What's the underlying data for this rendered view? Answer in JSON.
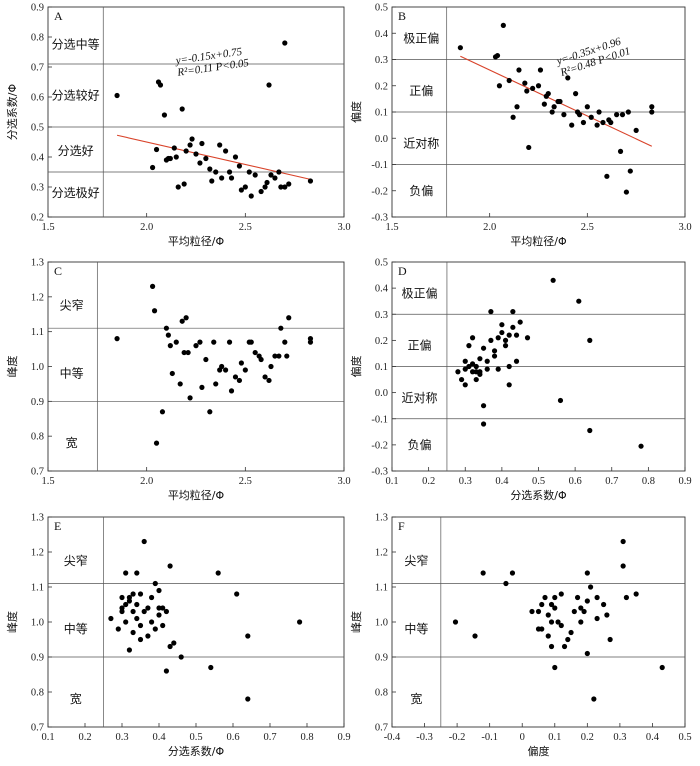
{
  "chart_data": [
    {
      "id": "A",
      "type": "scatter",
      "panel_label": "A",
      "xlabel": "平均粒径/Φ",
      "ylabel": "分选系数/Φ",
      "xlim": [
        1.5,
        3.0
      ],
      "ylim": [
        0.2,
        0.9
      ],
      "xticks": [
        1.5,
        2.0,
        2.5,
        3.0
      ],
      "yticks": [
        0.2,
        0.3,
        0.4,
        0.5,
        0.6,
        0.7,
        0.8,
        0.9
      ],
      "xtick_labels": [
        "1.5",
        "2.0",
        "2.5",
        "3.0"
      ],
      "ytick_labels": [
        "0.2",
        "0.3",
        "0.4",
        "0.5",
        "0.6",
        "0.7",
        "0.8",
        "0.9"
      ],
      "vlines": [
        1.78
      ],
      "hlines": [
        0.71,
        0.5,
        0.35
      ],
      "regions": [
        {
          "text": "分选中等",
          "x": 1.64,
          "y": 0.775
        },
        {
          "text": "分选较好",
          "x": 1.64,
          "y": 0.605
        },
        {
          "text": "分选好",
          "x": 1.64,
          "y": 0.42
        },
        {
          "text": "分选极好",
          "x": 1.64,
          "y": 0.28
        }
      ],
      "trend": {
        "x": [
          1.85,
          2.83
        ],
        "y": [
          0.4725,
          0.3255
        ]
      },
      "equation": {
        "lines": [
          "y=-0.15x+0.75",
          "R²=0.11   P<0.05"
        ],
        "x": 2.15,
        "y": 0.71,
        "rotate": -8
      },
      "x": [
        1.85,
        2.03,
        2.05,
        2.07,
        2.09,
        2.12,
        2.15,
        2.18,
        2.2,
        2.22,
        2.25,
        2.28,
        2.3,
        2.32,
        2.35,
        2.38,
        2.4,
        2.42,
        2.45,
        2.48,
        2.5,
        2.52,
        2.55,
        2.58,
        2.6,
        2.63,
        2.65,
        2.68,
        2.7,
        2.72,
        2.83,
        2.06,
        2.1,
        2.14,
        2.19,
        2.23,
        2.27,
        2.33,
        2.37,
        2.43,
        2.47,
        2.53,
        2.62,
        2.67,
        2.61,
        2.7,
        2.11,
        2.16
      ],
      "y": [
        0.605,
        0.365,
        0.425,
        0.64,
        0.54,
        0.395,
        0.4,
        0.56,
        0.42,
        0.44,
        0.41,
        0.445,
        0.395,
        0.36,
        0.35,
        0.33,
        0.42,
        0.35,
        0.4,
        0.29,
        0.3,
        0.35,
        0.34,
        0.285,
        0.3,
        0.34,
        0.33,
        0.3,
        0.78,
        0.31,
        0.32,
        0.65,
        0.39,
        0.43,
        0.31,
        0.46,
        0.38,
        0.32,
        0.44,
        0.33,
        0.37,
        0.27,
        0.64,
        0.35,
        0.315,
        0.3,
        0.395,
        0.3
      ]
    },
    {
      "id": "B",
      "type": "scatter",
      "panel_label": "B",
      "xlabel": "平均粒径/Φ",
      "ylabel": "偏度",
      "xlim": [
        1.5,
        3.0
      ],
      "ylim": [
        -0.3,
        0.5
      ],
      "xticks": [
        1.5,
        2.0,
        2.5,
        3.0
      ],
      "yticks": [
        -0.3,
        -0.2,
        -0.1,
        0.0,
        0.1,
        0.2,
        0.3,
        0.4,
        0.5
      ],
      "xtick_labels": [
        "1.5",
        "2.0",
        "2.5",
        "3.0"
      ],
      "ytick_labels": [
        "-0.3",
        "-0.2",
        "-0.1",
        "0.0",
        "0.1",
        "0.2",
        "0.3",
        "0.4",
        "0.5"
      ],
      "vlines": [
        1.78
      ],
      "hlines": [
        0.3,
        0.1,
        -0.1
      ],
      "regions": [
        {
          "text": "极正偏",
          "x": 1.65,
          "y": 0.38
        },
        {
          "text": "正偏",
          "x": 1.65,
          "y": 0.18
        },
        {
          "text": "近对称",
          "x": 1.65,
          "y": -0.02
        },
        {
          "text": "负偏",
          "x": 1.65,
          "y": -0.2
        }
      ],
      "trend": {
        "x": [
          1.85,
          2.83
        ],
        "y": [
          0.3125,
          -0.0305
        ]
      },
      "equation": {
        "lines": [
          "y=-0.35x+0.96",
          "R²=0.48   P<0.01"
        ],
        "x": 2.35,
        "y": 0.28,
        "rotate": -18
      },
      "x": [
        1.85,
        2.03,
        2.05,
        2.07,
        2.1,
        2.12,
        2.15,
        2.18,
        2.2,
        2.22,
        2.25,
        2.28,
        2.3,
        2.32,
        2.35,
        2.38,
        2.4,
        2.42,
        2.45,
        2.48,
        2.5,
        2.52,
        2.55,
        2.58,
        2.6,
        2.62,
        2.65,
        2.67,
        2.7,
        2.72,
        2.75,
        2.83,
        2.04,
        2.14,
        2.26,
        2.36,
        2.44,
        2.56,
        2.68,
        2.71,
        2.19,
        2.29,
        2.46,
        2.61,
        2.83,
        2.33
      ],
      "y": [
        0.345,
        0.31,
        0.2,
        0.43,
        0.22,
        0.08,
        0.26,
        0.21,
        -0.035,
        0.19,
        0.2,
        0.13,
        0.17,
        0.1,
        0.14,
        0.09,
        0.23,
        0.05,
        0.1,
        0.06,
        0.12,
        0.08,
        0.05,
        0.06,
        -0.145,
        0.06,
        0.09,
        -0.05,
        -0.205,
        -0.125,
        0.03,
        0.12,
        0.315,
        0.12,
        0.26,
        0.14,
        0.17,
        0.1,
        0.09,
        0.1,
        0.18,
        0.16,
        0.09,
        0.07,
        0.1,
        0.12
      ]
    },
    {
      "id": "C",
      "type": "scatter",
      "panel_label": "C",
      "xlabel": "平均粒径/Φ",
      "ylabel": "峰度",
      "xlim": [
        1.5,
        3.0
      ],
      "ylim": [
        0.7,
        1.3
      ],
      "xticks": [
        1.5,
        2.0,
        2.5,
        3.0
      ],
      "yticks": [
        0.7,
        0.8,
        0.9,
        1.0,
        1.1,
        1.2,
        1.3
      ],
      "xtick_labels": [
        "1.5",
        "2.0",
        "2.5",
        "3.0"
      ],
      "ytick_labels": [
        "0.7",
        "0.8",
        "0.9",
        "1.0",
        "1.1",
        "1.2",
        "1.3"
      ],
      "vlines": [
        1.75
      ],
      "hlines": [
        1.11,
        0.9
      ],
      "regions": [
        {
          "text": "尖窄",
          "x": 1.62,
          "y": 1.175
        },
        {
          "text": "中等",
          "x": 1.62,
          "y": 0.98
        },
        {
          "text": "宽",
          "x": 1.62,
          "y": 0.78
        }
      ],
      "x": [
        1.85,
        2.03,
        2.04,
        2.05,
        2.08,
        2.1,
        2.12,
        2.15,
        2.18,
        2.2,
        2.22,
        2.25,
        2.28,
        2.3,
        2.32,
        2.35,
        2.38,
        2.4,
        2.42,
        2.45,
        2.48,
        2.5,
        2.52,
        2.55,
        2.58,
        2.6,
        2.63,
        2.65,
        2.68,
        2.7,
        2.72,
        2.83,
        2.11,
        2.13,
        2.17,
        2.21,
        2.27,
        2.34,
        2.37,
        2.43,
        2.47,
        2.53,
        2.57,
        2.62,
        2.67,
        2.71,
        2.83,
        2.19
      ],
      "y": [
        1.08,
        1.23,
        1.16,
        0.78,
        0.87,
        1.11,
        1.06,
        1.07,
        1.13,
        1.14,
        0.91,
        1.06,
        0.94,
        1.02,
        0.87,
        0.95,
        1.0,
        0.99,
        1.07,
        0.97,
        1.01,
        0.99,
        1.07,
        1.04,
        1.02,
        0.97,
        1.0,
        1.03,
        1.11,
        1.07,
        1.14,
        1.07,
        1.09,
        0.98,
        0.95,
        1.04,
        1.07,
        1.07,
        0.99,
        0.93,
        0.96,
        1.07,
        1.03,
        0.96,
        1.03,
        1.03,
        1.08,
        1.04
      ]
    },
    {
      "id": "D",
      "type": "scatter",
      "panel_label": "D",
      "xlabel": "分选系数/Φ",
      "ylabel": "偏度",
      "xlim": [
        0.1,
        0.9
      ],
      "ylim": [
        -0.3,
        0.5
      ],
      "xticks": [
        0.1,
        0.2,
        0.3,
        0.4,
        0.5,
        0.6,
        0.7,
        0.8,
        0.9
      ],
      "yticks": [
        -0.3,
        -0.2,
        -0.1,
        0.0,
        0.1,
        0.2,
        0.3,
        0.4,
        0.5
      ],
      "xtick_labels": [
        "0.1",
        "0.2",
        "0.3",
        "0.4",
        "0.5",
        "0.6",
        "0.7",
        "0.8",
        "0.9"
      ],
      "ytick_labels": [
        "-0.3",
        "-0.2",
        "-0.1",
        "0.0",
        "0.1",
        "0.2",
        "0.3",
        "0.4",
        "0.5"
      ],
      "vlines": [
        0.25
      ],
      "hlines": [
        0.3,
        0.1,
        -0.1
      ],
      "regions": [
        {
          "text": "极正偏",
          "x": 0.175,
          "y": 0.38
        },
        {
          "text": "正偏",
          "x": 0.175,
          "y": 0.18
        },
        {
          "text": "近对称",
          "x": 0.175,
          "y": -0.02
        },
        {
          "text": "负偏",
          "x": 0.175,
          "y": -0.2
        }
      ],
      "x": [
        0.28,
        0.29,
        0.3,
        0.3,
        0.31,
        0.31,
        0.32,
        0.32,
        0.33,
        0.33,
        0.34,
        0.34,
        0.35,
        0.35,
        0.35,
        0.36,
        0.37,
        0.37,
        0.38,
        0.39,
        0.4,
        0.4,
        0.41,
        0.41,
        0.42,
        0.42,
        0.43,
        0.43,
        0.44,
        0.45,
        0.47,
        0.54,
        0.56,
        0.61,
        0.64,
        0.64,
        0.78,
        0.3,
        0.32,
        0.34,
        0.38,
        0.39,
        0.42,
        0.44,
        0.36,
        0.33
      ],
      "y": [
        0.08,
        0.05,
        0.12,
        0.09,
        0.18,
        0.1,
        0.21,
        0.08,
        0.1,
        0.05,
        0.13,
        0.08,
        0.17,
        -0.05,
        -0.12,
        0.12,
        0.31,
        0.2,
        0.14,
        0.09,
        0.23,
        0.26,
        0.2,
        0.18,
        0.03,
        0.1,
        0.31,
        0.25,
        0.12,
        0.27,
        0.21,
        0.43,
        -0.03,
        0.35,
        0.2,
        -0.145,
        -0.205,
        0.03,
        0.11,
        0.07,
        0.16,
        0.21,
        0.22,
        0.22,
        0.09,
        0.08
      ]
    },
    {
      "id": "E",
      "type": "scatter",
      "panel_label": "E",
      "xlabel": "分选系数/Φ",
      "ylabel": "峰度",
      "xlim": [
        0.1,
        0.9
      ],
      "ylim": [
        0.7,
        1.3
      ],
      "xticks": [
        0.1,
        0.2,
        0.3,
        0.4,
        0.5,
        0.6,
        0.7,
        0.8,
        0.9
      ],
      "yticks": [
        0.7,
        0.8,
        0.9,
        1.0,
        1.1,
        1.2,
        1.3
      ],
      "xtick_labels": [
        "0.1",
        "0.2",
        "0.3",
        "0.4",
        "0.5",
        "0.6",
        "0.7",
        "0.8",
        "0.9"
      ],
      "ytick_labels": [
        "0.7",
        "0.8",
        "0.9",
        "1.0",
        "1.1",
        "1.2",
        "1.3"
      ],
      "vlines": [
        0.25
      ],
      "hlines": [
        1.11,
        0.9
      ],
      "regions": [
        {
          "text": "尖窄",
          "x": 0.175,
          "y": 1.175
        },
        {
          "text": "中等",
          "x": 0.175,
          "y": 0.98
        },
        {
          "text": "宽",
          "x": 0.175,
          "y": 0.78
        }
      ],
      "x": [
        0.27,
        0.29,
        0.3,
        0.3,
        0.31,
        0.31,
        0.31,
        0.32,
        0.32,
        0.33,
        0.33,
        0.34,
        0.34,
        0.35,
        0.35,
        0.36,
        0.36,
        0.37,
        0.37,
        0.38,
        0.39,
        0.39,
        0.4,
        0.4,
        0.41,
        0.41,
        0.42,
        0.42,
        0.43,
        0.44,
        0.46,
        0.54,
        0.56,
        0.61,
        0.64,
        0.64,
        0.78,
        0.3,
        0.32,
        0.34,
        0.38,
        0.4,
        0.43,
        0.35,
        0.33
      ],
      "y": [
        1.01,
        0.98,
        1.07,
        1.03,
        1.14,
        1.05,
        1.0,
        0.92,
        1.06,
        1.08,
        0.97,
        1.14,
        1.01,
        1.08,
        0.95,
        1.23,
        1.03,
        1.04,
        0.96,
        1.07,
        0.98,
        1.11,
        1.04,
        1.09,
        0.99,
        1.04,
        0.86,
        1.03,
        1.16,
        0.94,
        0.9,
        0.87,
        1.14,
        1.08,
        0.96,
        0.78,
        1.0,
        1.04,
        1.07,
        1.05,
        1.0,
        1.02,
        0.93,
        0.99,
        1.03
      ]
    },
    {
      "id": "F",
      "type": "scatter",
      "panel_label": "F",
      "xlabel": "偏度",
      "ylabel": "峰度",
      "xlim": [
        -0.4,
        0.5
      ],
      "ylim": [
        0.7,
        1.3
      ],
      "xticks": [
        -0.4,
        -0.3,
        -0.2,
        -0.1,
        0.0,
        0.1,
        0.2,
        0.3,
        0.4,
        0.5
      ],
      "yticks": [
        0.7,
        0.8,
        0.9,
        1.0,
        1.1,
        1.2,
        1.3
      ],
      "xtick_labels": [
        "-0.4",
        "-0.3",
        "-0.2",
        "-0.1",
        "0",
        "0.1",
        "0.2",
        "0.3",
        "0.4",
        "0.5"
      ],
      "ytick_labels": [
        "0.7",
        "0.8",
        "0.9",
        "1.0",
        "1.1",
        "1.2",
        "1.3"
      ],
      "vlines": [
        -0.25
      ],
      "hlines": [
        1.11,
        0.9
      ],
      "regions": [
        {
          "text": "尖窄",
          "x": -0.325,
          "y": 1.175
        },
        {
          "text": "中等",
          "x": -0.325,
          "y": 0.98
        },
        {
          "text": "宽",
          "x": -0.325,
          "y": 0.78
        }
      ],
      "x": [
        -0.205,
        -0.145,
        -0.12,
        -0.05,
        -0.03,
        0.03,
        0.05,
        0.05,
        0.06,
        0.07,
        0.08,
        0.08,
        0.09,
        0.09,
        0.1,
        0.1,
        0.1,
        0.11,
        0.12,
        0.12,
        0.13,
        0.14,
        0.16,
        0.17,
        0.18,
        0.18,
        0.2,
        0.2,
        0.2,
        0.21,
        0.22,
        0.23,
        0.25,
        0.26,
        0.27,
        0.31,
        0.31,
        0.32,
        0.35,
        0.43,
        0.06,
        0.15,
        0.19,
        0.23,
        0.09
      ],
      "y": [
        1.0,
        0.96,
        1.14,
        1.11,
        1.14,
        1.03,
        0.98,
        1.03,
        0.98,
        1.07,
        1.02,
        0.96,
        1.0,
        0.93,
        1.04,
        1.07,
        0.87,
        1.0,
        1.08,
        0.99,
        0.93,
        0.95,
        1.03,
        1.07,
        1.04,
        1.0,
        1.14,
        1.06,
        0.91,
        1.1,
        0.78,
        1.07,
        1.05,
        1.02,
        0.95,
        1.23,
        1.16,
        1.07,
        1.08,
        0.87,
        1.05,
        0.97,
        1.03,
        1.01,
        1.05
      ]
    }
  ]
}
